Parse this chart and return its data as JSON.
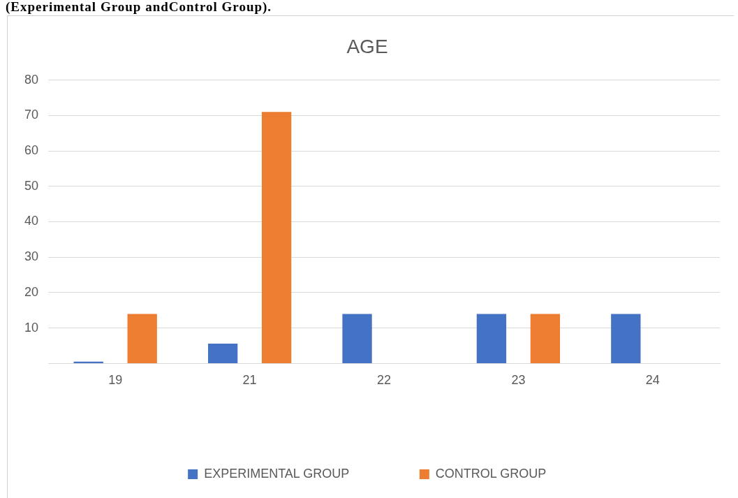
{
  "chart_data": {
    "type": "bar",
    "title": "AGE",
    "annotations": [
      "(Experimental Group andControl Group)."
    ],
    "categories": [
      "19",
      "21",
      "22",
      "23",
      "24"
    ],
    "series": [
      {
        "name": "EXPERIMENTAL GROUP",
        "color": "#4472c4",
        "values": [
          0.5,
          5.6,
          14,
          14,
          14
        ]
      },
      {
        "name": "CONTROL GROUP",
        "color": "#ed7d31",
        "values": [
          14,
          71,
          0,
          14,
          0
        ]
      }
    ],
    "ylim": [
      0,
      80
    ],
    "yticks": [
      {
        "value": 0,
        "label": null
      },
      10,
      20,
      30,
      40,
      50,
      60,
      70,
      80
    ],
    "grid": "y",
    "legend": "bottom"
  }
}
